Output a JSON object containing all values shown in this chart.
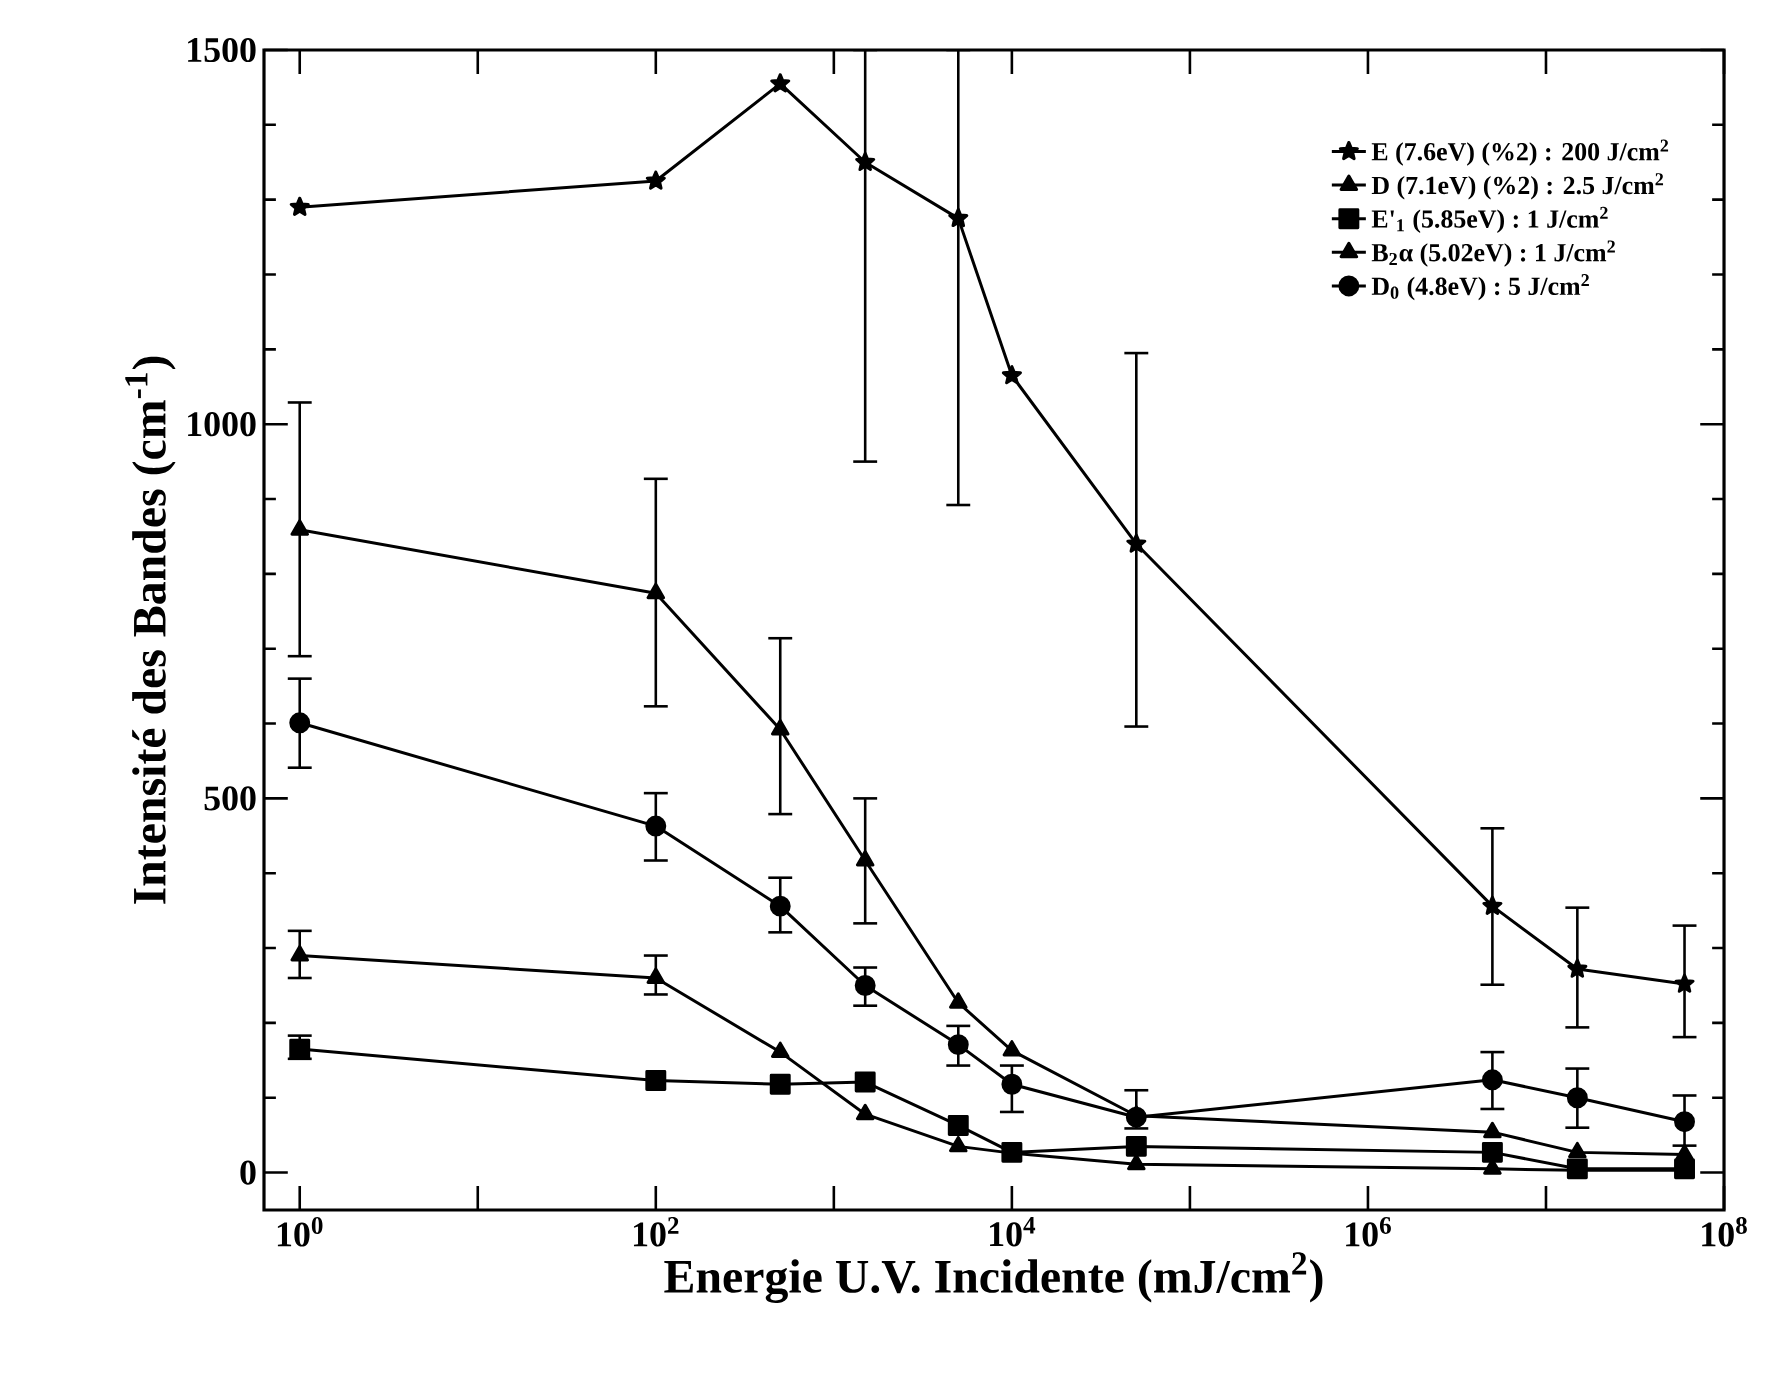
{
  "chart_data": {
    "type": "line",
    "xlabel": "Energie U.V. Incidente (mJ/cm$^{2}$)",
    "ylabel": "Intensité des Bandes (cm$^{-1}$)",
    "log": "x",
    "legend": "top right",
    "line_style": "solid",
    "grid": false,
    "xlim": [
      0.63,
      100000000
    ],
    "ylim": [
      -50,
      1500
    ],
    "xticks": [
      {
        "value": 1,
        "label": "10$^{0}$"
      },
      {
        "value": 10,
        "label": null
      },
      {
        "value": 100,
        "label": "10$^{2}$"
      },
      {
        "value": 1000,
        "label": null
      },
      {
        "value": 10000,
        "label": "10$^{4}$"
      },
      {
        "value": 100000,
        "label": null
      },
      {
        "value": 1000000,
        "label": "10$^{6}$"
      },
      {
        "value": 10000000,
        "label": null
      },
      {
        "value": 100000000,
        "label": "10$^{8}$"
      }
    ],
    "yticks": [
      0,
      500,
      1000,
      1500
    ],
    "x": [
      1,
      100,
      500,
      1500,
      5000,
      10000,
      50000,
      5000000,
      15000000,
      60000000
    ],
    "series": [
      {
        "name": "E    (7.6eV) (%2) : 200 J/cm$^{2}$",
        "color": "#000000",
        "marker": "star",
        "values": [
          1290,
          1325,
          1455,
          1350,
          1275,
          1065,
          840,
          356,
          272,
          252
        ],
        "errors": [
          null,
          null,
          null,
          [
            950,
            1500
          ],
          [
            892,
            1500
          ],
          null,
          [
            596,
            1095
          ],
          [
            251,
            460
          ],
          [
            194,
            354
          ],
          [
            181,
            330
          ]
        ]
      },
      {
        "name": "D    (7.1eV) (%2) : 2.5 J/cm$^{2}$",
        "color": "#000000",
        "marker": "triangle",
        "values": [
          859,
          774,
          592,
          417,
          227,
          163,
          76,
          54,
          27,
          24
        ],
        "errors": [
          [
            690,
            1029
          ],
          [
            623,
            927
          ],
          [
            479,
            714
          ],
          [
            333,
            500
          ],
          null,
          null,
          null,
          null,
          null,
          null
        ]
      },
      {
        "name": "E'$_{1}$  (5.85eV) : 1 J/cm$^{2}$",
        "color": "#000000",
        "marker": "square",
        "values": [
          165,
          123,
          118,
          121,
          63,
          27,
          35,
          27,
          5,
          5
        ],
        "errors": [
          [
            152,
            183
          ],
          null,
          null,
          null,
          null,
          null,
          null,
          null,
          null,
          null
        ]
      },
      {
        "name": "B$_{2}$α (5.02eV) : 1 J/cm$^{2}$",
        "color": "#000000",
        "marker": "triangle",
        "values": [
          290,
          260,
          161,
          78,
          35,
          26,
          11,
          5,
          3,
          3
        ],
        "errors": [
          [
            260,
            323
          ],
          [
            238,
            290
          ],
          null,
          null,
          null,
          null,
          null,
          null,
          null,
          null
        ]
      },
      {
        "name": "D$_{0}$  (4.8eV) : 5 J/cm$^{2}$",
        "color": "#000000",
        "marker": "circle",
        "values": [
          601,
          463,
          356,
          250,
          171,
          118,
          74,
          124,
          100,
          68
        ],
        "errors": [
          [
            541,
            660
          ],
          [
            417,
            507
          ],
          [
            321,
            394
          ],
          [
            223,
            274
          ],
          [
            143,
            196
          ],
          [
            81,
            143
          ],
          [
            59,
            110
          ],
          [
            85,
            161
          ],
          [
            60,
            139
          ],
          [
            36,
            103
          ]
        ]
      }
    ]
  }
}
